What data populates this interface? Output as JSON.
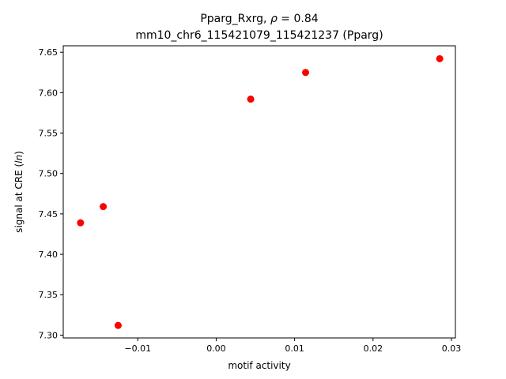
{
  "chart_data": {
    "type": "scatter",
    "title_line1_prefix": "Pparg_Rxrg, ",
    "title_line1_symbol": "ρ",
    "title_line1_suffix": " = 0.84",
    "title_line2": "mm10_chr6_115421079_115421237 (Pparg)",
    "xlabel": "motif activity",
    "ylabel_prefix": "signal at CRE (",
    "ylabel_italic": "ln",
    "ylabel_suffix": ")",
    "xlim": [
      -0.0195,
      0.0305
    ],
    "ylim": [
      7.2965,
      7.658
    ],
    "xticks": [
      -0.01,
      0.0,
      0.01,
      0.02,
      0.03
    ],
    "xtick_labels": [
      "−0.01",
      "0.00",
      "0.01",
      "0.02",
      "0.03"
    ],
    "yticks": [
      7.3,
      7.35,
      7.4,
      7.45,
      7.5,
      7.55,
      7.6,
      7.65
    ],
    "ytick_labels": [
      "7.30",
      "7.35",
      "7.40",
      "7.45",
      "7.50",
      "7.55",
      "7.60",
      "7.65"
    ],
    "marker_color": "#ff0000",
    "points": [
      {
        "x": -0.0173,
        "y": 7.439
      },
      {
        "x": -0.0144,
        "y": 7.459
      },
      {
        "x": -0.0125,
        "y": 7.312
      },
      {
        "x": 0.0044,
        "y": 7.592
      },
      {
        "x": 0.0114,
        "y": 7.625
      },
      {
        "x": 0.0285,
        "y": 7.642
      }
    ]
  }
}
